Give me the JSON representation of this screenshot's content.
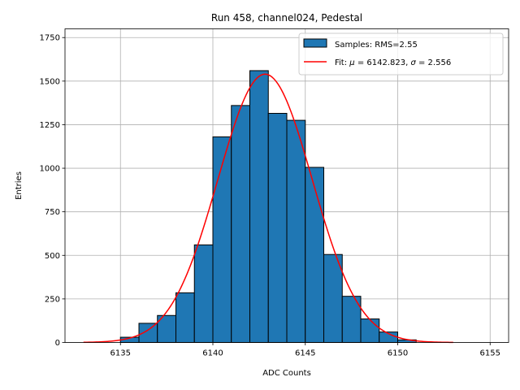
{
  "chart_data": {
    "type": "bar",
    "title": "Run 458, channel024, Pedestal",
    "xlabel": "ADC Counts",
    "ylabel": "Entries",
    "xlim": [
      6132.0,
      6156.0
    ],
    "ylim": [
      0,
      1800
    ],
    "xticks": [
      6135,
      6140,
      6145,
      6150,
      6155
    ],
    "yticks": [
      0,
      250,
      500,
      750,
      1000,
      1250,
      1500,
      1750
    ],
    "grid": true,
    "bins": [
      {
        "x0": 6135,
        "x1": 6136,
        "value": 30
      },
      {
        "x0": 6136,
        "x1": 6137,
        "value": 110
      },
      {
        "x0": 6137,
        "x1": 6138,
        "value": 155
      },
      {
        "x0": 6138,
        "x1": 6139,
        "value": 285
      },
      {
        "x0": 6139,
        "x1": 6140,
        "value": 560
      },
      {
        "x0": 6140,
        "x1": 6141,
        "value": 1180
      },
      {
        "x0": 6141,
        "x1": 6142,
        "value": 1360
      },
      {
        "x0": 6142,
        "x1": 6143,
        "value": 1560
      },
      {
        "x0": 6143,
        "x1": 6144,
        "value": 1315
      },
      {
        "x0": 6144,
        "x1": 6145,
        "value": 1275
      },
      {
        "x0": 6145,
        "x1": 6146,
        "value": 1005
      },
      {
        "x0": 6146,
        "x1": 6147,
        "value": 505
      },
      {
        "x0": 6147,
        "x1": 6148,
        "value": 265
      },
      {
        "x0": 6148,
        "x1": 6149,
        "value": 135
      },
      {
        "x0": 6149,
        "x1": 6150,
        "value": 60
      },
      {
        "x0": 6150,
        "x1": 6151,
        "value": 15
      }
    ],
    "fit": {
      "mu": 6142.823,
      "sigma": 2.556,
      "amplitude": 1540,
      "x_range": [
        6133,
        6153
      ]
    },
    "legend": {
      "position": "top-right",
      "hist_label": "Samples: RMS=2.55",
      "fit_label_prefix": "Fit: ",
      "fit_mu_symbol": "μ",
      "fit_mu_text": " = 6142.823, ",
      "fit_sigma_symbol": "σ",
      "fit_sigma_text": " = 2.556"
    },
    "colors": {
      "bar_fill": "#1f77b4",
      "bar_edge": "#000000",
      "fit_line": "#ff0000",
      "grid": "#b0b0b0"
    }
  }
}
